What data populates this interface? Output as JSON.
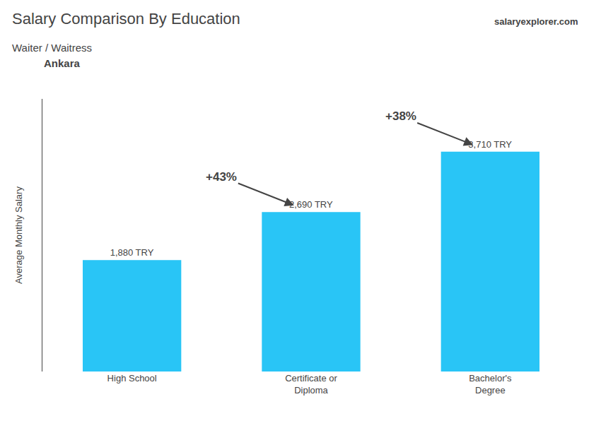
{
  "chart_data": {
    "type": "bar",
    "title": "Salary Comparison By Education",
    "subtitle": "Waiter / Waitress",
    "location": "Ankara",
    "brand": "salaryexplorer.com",
    "categories": [
      "High School",
      "Certificate or\nDiploma",
      "Bachelor's\nDegree"
    ],
    "values": [
      1880,
      2690,
      3710
    ],
    "value_labels": [
      "1,880 TRY",
      "2,690 TRY",
      "3,710 TRY"
    ],
    "data_labels": true,
    "pct_labels": [
      "+43%",
      "+38%"
    ],
    "ylabel": "Average Monthly Salary",
    "color": "#29C5F6",
    "ylim": [
      0,
      4600
    ],
    "yticks": [],
    "tick_labels": "x",
    "grid": false
  }
}
